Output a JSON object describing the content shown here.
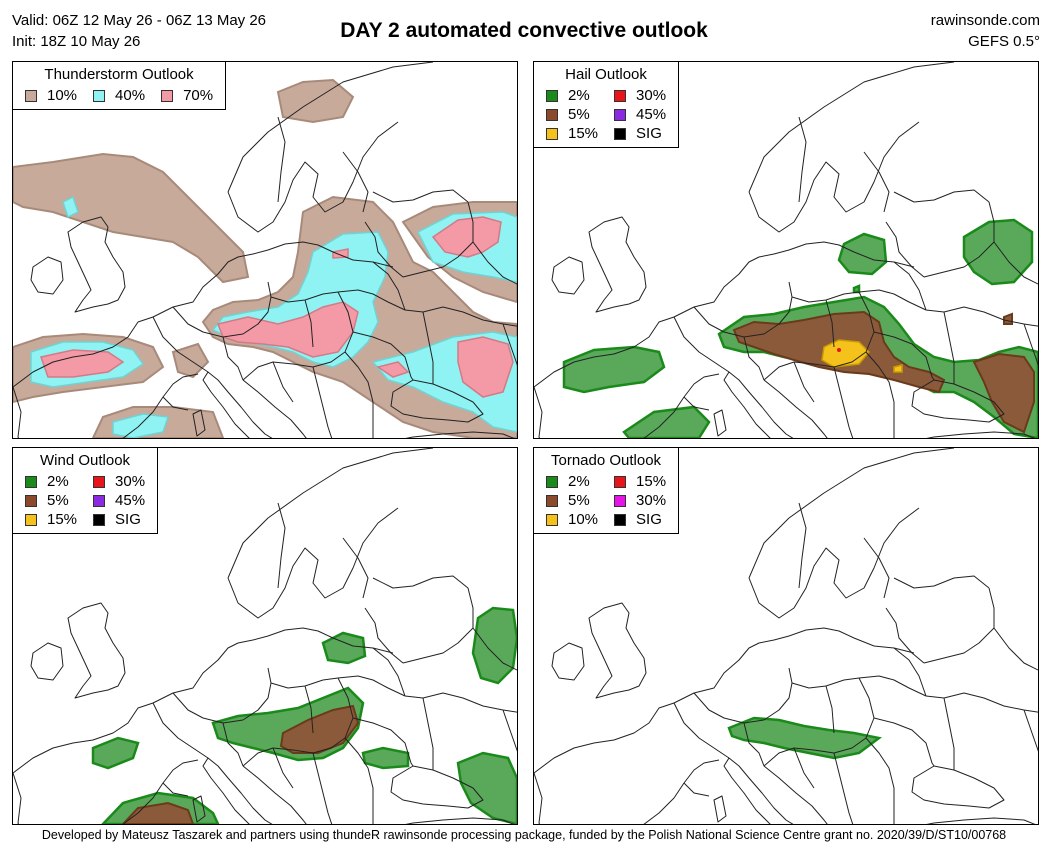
{
  "header": {
    "valid": "Valid: 06Z 12 May 26 - 06Z 13 May 26",
    "init": "Init: 18Z 10 May 26",
    "title": "DAY 2 automated convective outlook",
    "site": "rawinsonde.com",
    "model": "GEFS 0.5°"
  },
  "panels": [
    {
      "title": "Thunderstorm Outlook",
      "columns": 3,
      "legend": [
        {
          "label": "10%",
          "color": "#c8aa9b"
        },
        {
          "label": "40%",
          "color": "#8ff3f3"
        },
        {
          "label": "70%",
          "color": "#f49aa6"
        }
      ]
    },
    {
      "title": "Hail Outlook",
      "columns": 2,
      "legend": [
        {
          "label": "2%",
          "color": "#1a8a1a"
        },
        {
          "label": "30%",
          "color": "#e8141a"
        },
        {
          "label": "5%",
          "color": "#8b4a2b"
        },
        {
          "label": "45%",
          "color": "#8a2be2"
        },
        {
          "label": "15%",
          "color": "#f4c21a"
        },
        {
          "label": "SIG",
          "color": "#000000"
        }
      ]
    },
    {
      "title": "Wind Outlook",
      "columns": 2,
      "legend": [
        {
          "label": "2%",
          "color": "#1a8a1a"
        },
        {
          "label": "30%",
          "color": "#e8141a"
        },
        {
          "label": "5%",
          "color": "#8b4a2b"
        },
        {
          "label": "45%",
          "color": "#8a2be2"
        },
        {
          "label": "15%",
          "color": "#f4c21a"
        },
        {
          "label": "SIG",
          "color": "#000000"
        }
      ]
    },
    {
      "title": "Tornado Outlook",
      "columns": 2,
      "legend": [
        {
          "label": "2%",
          "color": "#1a8a1a"
        },
        {
          "label": "15%",
          "color": "#e8141a"
        },
        {
          "label": "5%",
          "color": "#8b4a2b"
        },
        {
          "label": "30%",
          "color": "#e614e6"
        },
        {
          "label": "10%",
          "color": "#f4c21a"
        },
        {
          "label": "SIG",
          "color": "#000000"
        }
      ]
    }
  ],
  "footer": "Developed by Mateusz Taszarek and partners using thundeR rawinsonde processing package, funded by the Polish National Science Centre grant no. 2020/39/D/ST10/00768"
}
